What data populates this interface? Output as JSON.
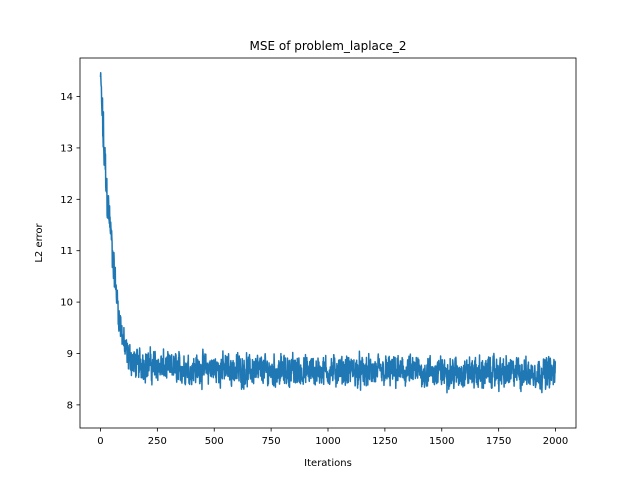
{
  "chart_data": {
    "type": "line",
    "title": "MSE of problem_laplace_2",
    "xlabel": "Iterations",
    "ylabel": "L2 error",
    "xlim": [
      -90,
      2090
    ],
    "ylim": [
      7.55,
      14.75
    ],
    "xticks": [
      0,
      250,
      500,
      750,
      1000,
      1250,
      1500,
      1750,
      2000
    ],
    "yticks": [
      8,
      9,
      10,
      11,
      12,
      13,
      14
    ],
    "grid": false,
    "line_color": "#1f77b4",
    "series": [
      {
        "x": [
          0,
          10,
          20,
          30,
          40,
          50,
          60,
          70,
          80,
          90,
          100,
          110,
          120,
          130,
          140,
          150,
          175,
          200,
          250,
          300,
          400,
          500,
          600,
          750,
          900,
          1000,
          1100,
          1250,
          1400,
          1500,
          1600,
          1750,
          1900,
          2000
        ],
        "y": [
          14.38,
          13.4,
          12.6,
          12.0,
          11.6,
          11.1,
          10.6,
          10.2,
          9.8,
          9.5,
          9.25,
          9.05,
          8.95,
          8.9,
          8.85,
          8.82,
          8.8,
          8.78,
          8.75,
          8.72,
          8.7,
          8.7,
          8.68,
          8.67,
          8.66,
          8.66,
          8.65,
          8.64,
          8.64,
          8.63,
          8.63,
          8.63,
          8.62,
          8.62
        ],
        "noise_amplitude": [
          0.2,
          0.9,
          0.8,
          0.6,
          0.55,
          0.5,
          0.45,
          0.45,
          0.42,
          0.42,
          0.4,
          0.4,
          0.4,
          0.4,
          0.4,
          0.4,
          0.4,
          0.4,
          0.4,
          0.4,
          0.4,
          0.4,
          0.4,
          0.4,
          0.4,
          0.4,
          0.4,
          0.4,
          0.4,
          0.4,
          0.4,
          0.4,
          0.4,
          0.4
        ]
      }
    ]
  }
}
